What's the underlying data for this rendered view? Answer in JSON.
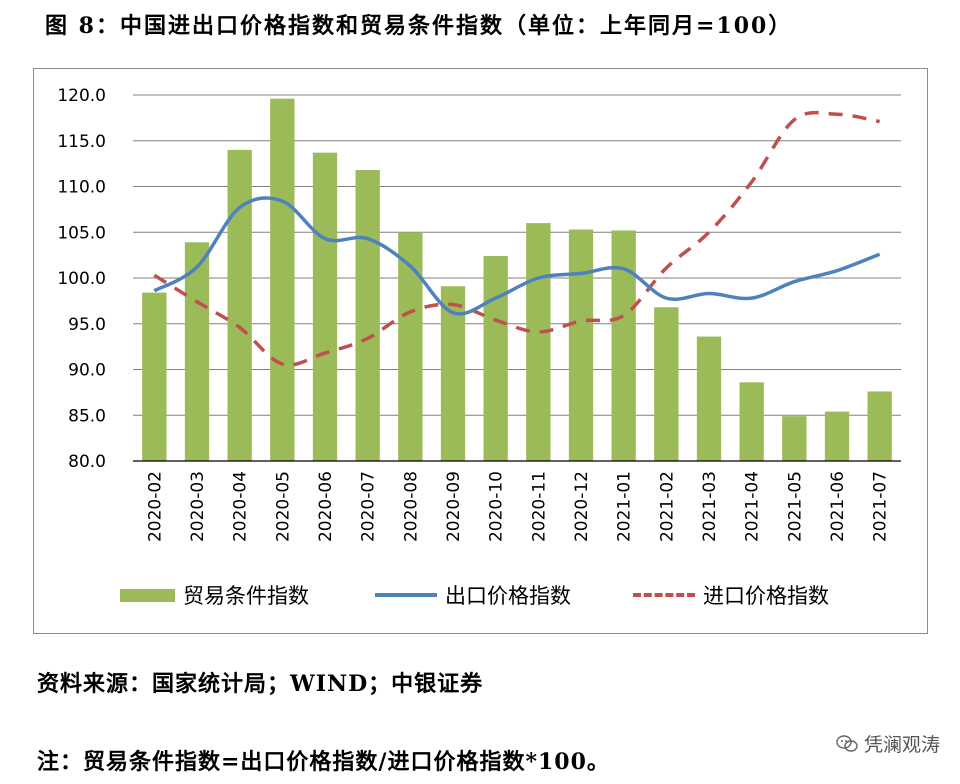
{
  "title": "图 8：中国进出口价格指数和贸易条件指数（单位：上年同月=100）",
  "source": "资料来源：国家统计局；WIND；中银证券",
  "note": "注：贸易条件指数=出口价格指数/进口价格指数*100。",
  "watermark": "凭澜观涛",
  "colors": {
    "bar": "#9bbb59",
    "export_line": "#4f81bd",
    "import_line": "#c0504d",
    "grid": "#808080",
    "frame": "#8c8c8c"
  },
  "chart_data": {
    "type": "bar",
    "categories": [
      "2020-02",
      "2020-03",
      "2020-04",
      "2020-05",
      "2020-06",
      "2020-07",
      "2020-08",
      "2020-09",
      "2020-10",
      "2020-11",
      "2020-12",
      "2021-01",
      "2021-02",
      "2021-03",
      "2021-04",
      "2021-05",
      "2021-06",
      "2021-07"
    ],
    "ylim": [
      80,
      120
    ],
    "yticks": [
      "80.0",
      "85.0",
      "90.0",
      "95.0",
      "100.0",
      "105.0",
      "110.0",
      "115.0",
      "120.0"
    ],
    "grid": true,
    "legend_position": "bottom",
    "series": [
      {
        "name": "贸易条件指数",
        "kind": "bar",
        "values": [
          98.4,
          103.9,
          114.0,
          119.6,
          113.7,
          111.8,
          105.0,
          99.1,
          102.4,
          106.0,
          105.3,
          105.2,
          96.8,
          93.6,
          88.6,
          84.9,
          85.4,
          87.6
        ]
      },
      {
        "name": "出口价格指数",
        "kind": "line",
        "values": [
          98.6,
          101.2,
          107.7,
          108.4,
          104.3,
          104.3,
          101.3,
          96.2,
          97.8,
          100.0,
          100.5,
          101.0,
          97.8,
          98.3,
          97.8,
          99.6,
          100.8,
          102.6
        ]
      },
      {
        "name": "进口价格指数",
        "kind": "dashed-line",
        "values": [
          100.3,
          97.4,
          94.6,
          90.6,
          91.8,
          93.4,
          96.3,
          97.1,
          95.4,
          94.1,
          95.3,
          95.9,
          101.1,
          105.0,
          110.5,
          117.3,
          117.9,
          117.1
        ]
      }
    ]
  }
}
